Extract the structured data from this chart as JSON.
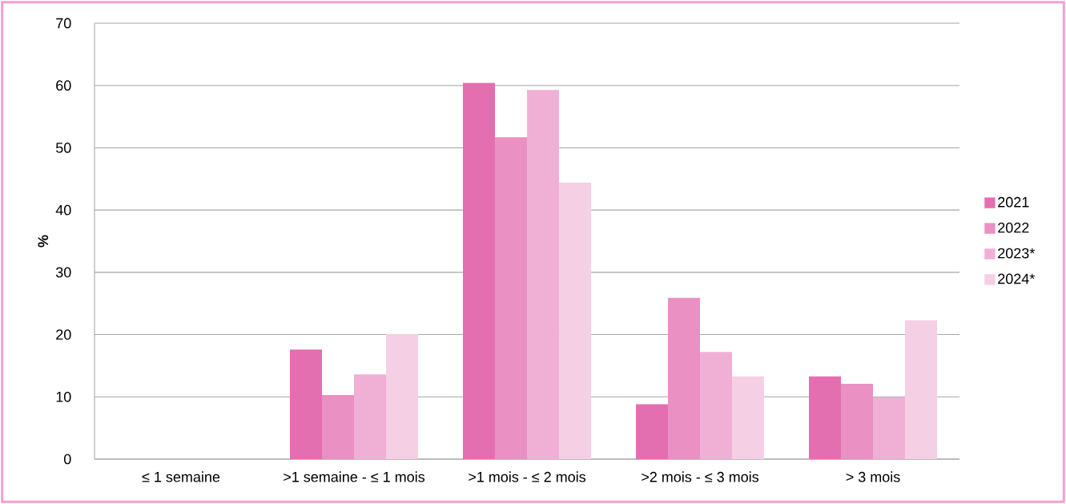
{
  "chart_data": {
    "type": "bar",
    "ylabel": "%",
    "categories": [
      "≤ 1 semaine",
      ">1 semaine - ≤ 1 mois",
      ">1 mois - ≤ 2 mois",
      ">2 mois - ≤ 3 mois",
      "> 3 mois"
    ],
    "series": [
      {
        "name": "2021",
        "color": "#e46fb0",
        "values": [
          0,
          17.6,
          60.4,
          8.8,
          13.3
        ]
      },
      {
        "name": "2022",
        "color": "#ea90c2",
        "values": [
          0,
          10.3,
          51.7,
          25.9,
          12.1
        ]
      },
      {
        "name": "2023*",
        "color": "#f0b0d5",
        "values": [
          0,
          13.6,
          59.3,
          17.2,
          9.9
        ]
      },
      {
        "name": "2024*",
        "color": "#f5cfe4",
        "values": [
          0,
          20.1,
          44.4,
          13.3,
          22.3
        ]
      }
    ],
    "ylim": [
      0,
      70
    ],
    "yticks": [
      0,
      10,
      20,
      30,
      40,
      50,
      60,
      70
    ],
    "grid": "y",
    "legend": "right"
  }
}
